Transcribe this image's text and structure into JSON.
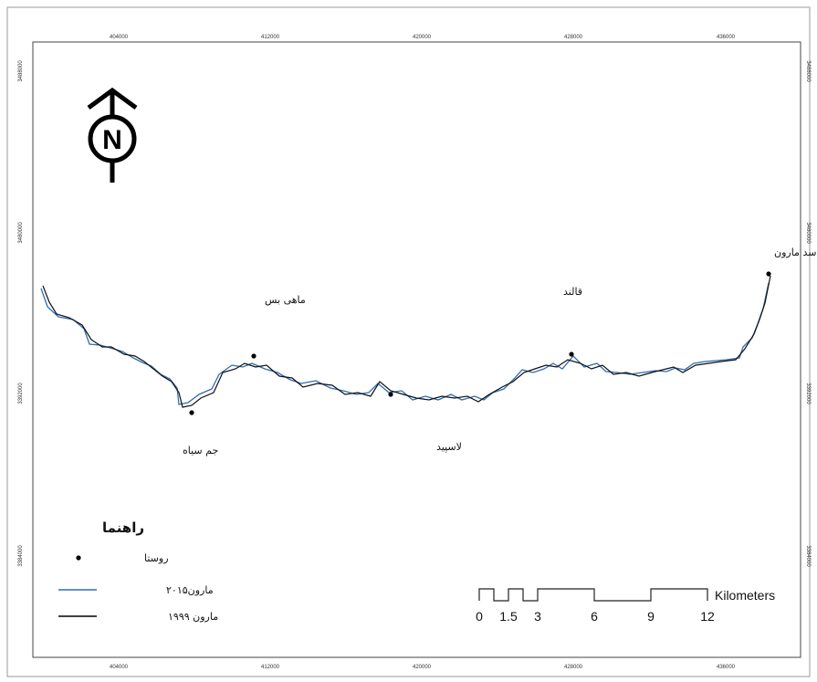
{
  "axes": {
    "x_ticks": [
      "404000",
      "412000",
      "420000",
      "428000",
      "436000"
    ],
    "y_ticks": [
      "3488000",
      "3480000",
      "3392000",
      "3384000"
    ]
  },
  "places": [
    {
      "name": "سد مارون"
    },
    {
      "name": "ماهی بس"
    },
    {
      "name": "قالند"
    },
    {
      "name": "جم سیاه"
    },
    {
      "name": "لاسپید"
    }
  ],
  "north_arrow": {
    "letter": "N",
    "icon": "north-arrow-icon"
  },
  "legend": {
    "title": "راهنما",
    "items": [
      {
        "label": "روستا",
        "symbol": "point",
        "color": "#000000"
      },
      {
        "label": "مارون۲۰۱۵",
        "symbol": "line",
        "color": "#2f6db5"
      },
      {
        "label": "مارون ۱۹۹۹",
        "symbol": "line",
        "color": "#000000"
      }
    ]
  },
  "scale_bar": {
    "unit": "Kilometers",
    "labels": [
      "0",
      "1.5",
      "3",
      "6",
      "9",
      "12"
    ]
  }
}
